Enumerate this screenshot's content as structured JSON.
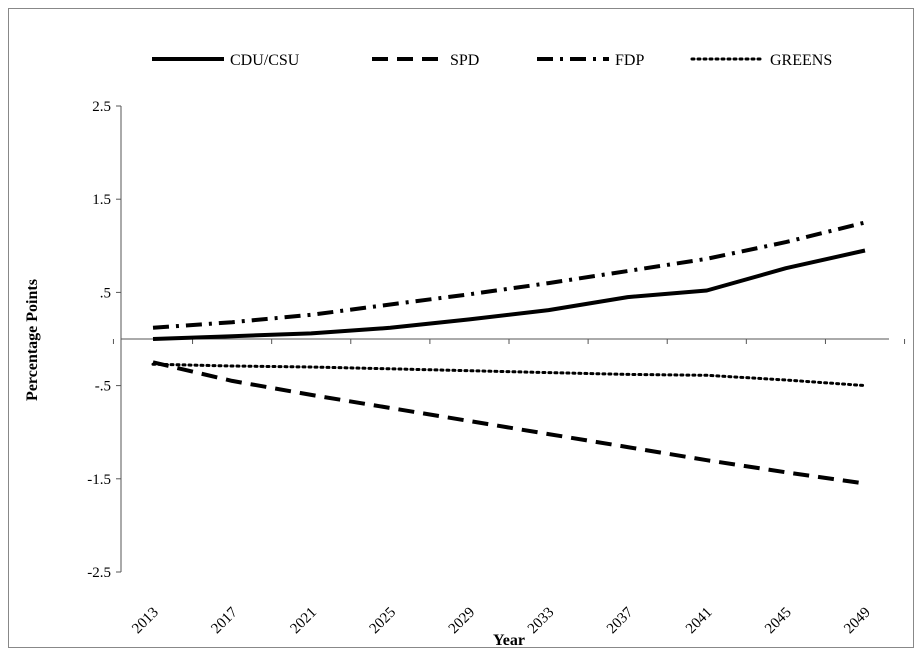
{
  "chart_data": {
    "type": "line",
    "title": "",
    "xlabel": "Year",
    "ylabel": "Percentage Points",
    "x": [
      2013,
      2017,
      2021,
      2025,
      2029,
      2033,
      2037,
      2041,
      2045,
      2049
    ],
    "x_tick_labels": [
      "2013",
      "2017",
      "2021",
      "2025",
      "2029",
      "2033",
      "2037",
      "2041",
      "2045",
      "2049"
    ],
    "ylim": [
      -2.5,
      2.5
    ],
    "y_ticks": [
      2.5,
      1.5,
      0.5,
      -0.5,
      -1.5,
      -2.5
    ],
    "y_tick_labels": [
      "2.5",
      "1.5",
      ".5",
      "-.5",
      "-1.5",
      "-2.5"
    ],
    "grid": false,
    "legend_position": "top",
    "series": [
      {
        "name": "CDU/CSU",
        "style": "solid",
        "color": "#000000",
        "values": [
          0.0,
          0.03,
          0.06,
          0.12,
          0.21,
          0.31,
          0.45,
          0.52,
          0.76,
          0.95
        ]
      },
      {
        "name": "SPD",
        "style": "dashed",
        "color": "#000000",
        "values": [
          -0.25,
          -0.45,
          -0.6,
          -0.74,
          -0.88,
          -1.02,
          -1.16,
          -1.3,
          -1.43,
          -1.55
        ]
      },
      {
        "name": "FDP",
        "style": "dashdot",
        "color": "#000000",
        "values": [
          0.12,
          0.18,
          0.26,
          0.37,
          0.48,
          0.6,
          0.73,
          0.86,
          1.04,
          1.25
        ]
      },
      {
        "name": "GREENS",
        "style": "dotted",
        "color": "#000000",
        "values": [
          -0.27,
          -0.29,
          -0.3,
          -0.32,
          -0.34,
          -0.36,
          -0.38,
          -0.39,
          -0.44,
          -0.5
        ]
      }
    ]
  }
}
